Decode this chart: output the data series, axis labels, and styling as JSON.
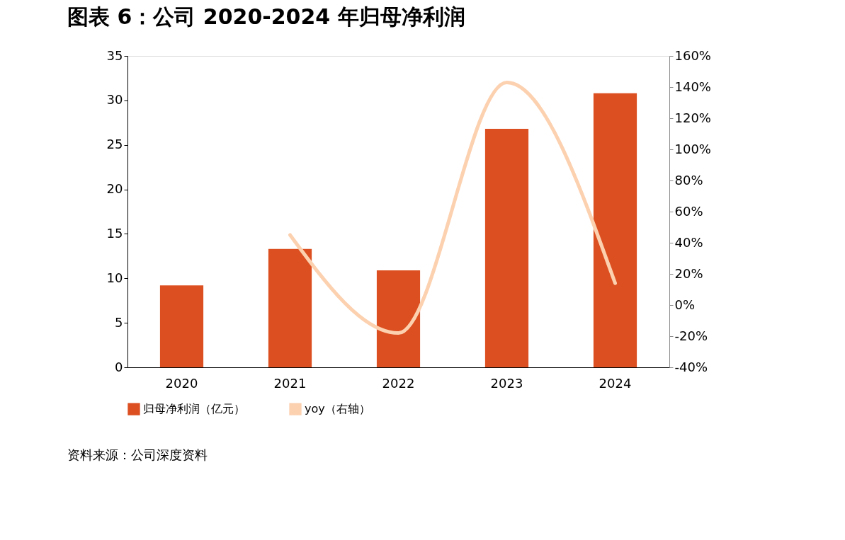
{
  "chart_data": {
    "type": "bar",
    "title": "图表 6：公司 2020-2024 年归母净利润",
    "categories": [
      "2020",
      "2021",
      "2022",
      "2023",
      "2024"
    ],
    "series": [
      {
        "name": "归母净利润（亿元）",
        "color": "#dc4f20",
        "values": [
          9.2,
          13.3,
          10.9,
          26.8,
          30.8
        ]
      },
      {
        "name": "yoy（右轴）",
        "type": "line",
        "axis": "y2",
        "color": "#fcd1b0",
        "values": [
          null,
          45,
          -18,
          143,
          14
        ]
      }
    ],
    "ylim": [
      0,
      35
    ],
    "yticks": [
      0,
      5,
      10,
      15,
      20,
      25,
      30,
      35
    ],
    "y2lim": [
      -40,
      160
    ],
    "y2ticks": [
      {
        "value": -40,
        "label": "-40%"
      },
      {
        "value": -20,
        "label": "-20%"
      },
      {
        "value": 0,
        "label": "0%"
      },
      {
        "value": 20,
        "label": "20%"
      },
      {
        "value": 40,
        "label": "40%"
      },
      {
        "value": 60,
        "label": "60%"
      },
      {
        "value": 80,
        "label": "80%"
      },
      {
        "value": 100,
        "label": "100%"
      },
      {
        "value": 120,
        "label": "120%"
      },
      {
        "value": 140,
        "label": "140%"
      },
      {
        "value": 160,
        "label": "160%"
      }
    ],
    "legend": "bottom",
    "grid": false,
    "annotations": [
      "资料来源：公司深度资料"
    ]
  }
}
